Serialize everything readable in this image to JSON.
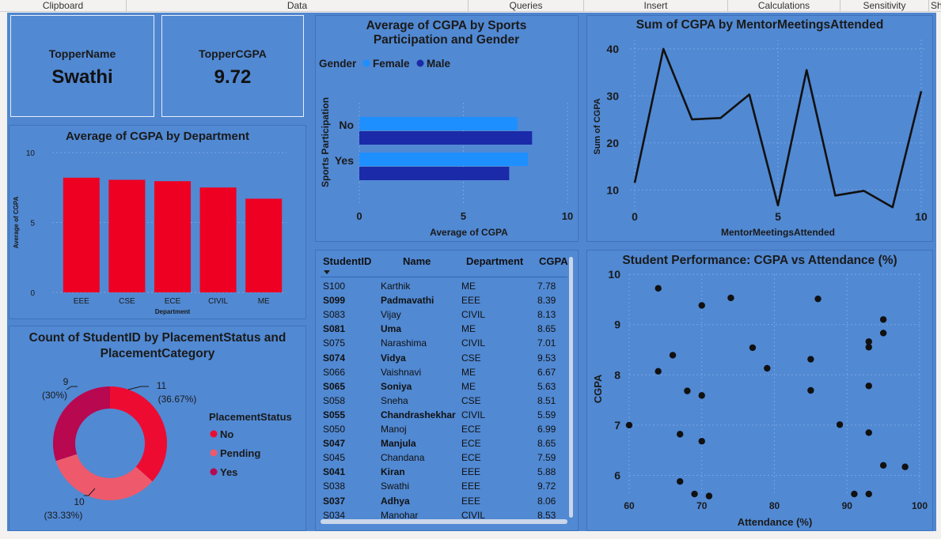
{
  "ribbon": {
    "groups": [
      "Clipboard",
      "Data",
      "Queries",
      "Insert",
      "Calculations",
      "Sensitivity",
      "Sh"
    ]
  },
  "cards": {
    "topper_name": {
      "label": "TopperName",
      "value": "Swathi"
    },
    "topper_cgpa": {
      "label": "TopperCGPA",
      "value": "9.72"
    }
  },
  "colors": {
    "canvas": "#4f86cf",
    "bar_red": "#ee0022",
    "female": "#1e8fff",
    "male": "#1b2aa8",
    "donut_no": "#ee0b32",
    "donut_pending": "#ee5a6c",
    "donut_yes": "#b8084f"
  },
  "chart_data": [
    {
      "id": "dept",
      "type": "bar",
      "title": "Average of CGPA by Department",
      "xlabel": "Department",
      "ylabel": "Average of CGPA",
      "categories": [
        "EEE",
        "CSE",
        "ECE",
        "CIVIL",
        "ME"
      ],
      "values": [
        8.2,
        8.05,
        7.95,
        7.5,
        6.7
      ],
      "ylim": [
        0,
        10
      ],
      "yticks": [
        "0",
        "5",
        "10"
      ]
    },
    {
      "id": "sports",
      "type": "bar",
      "title": "Average of CGPA by Sports Participation and Gender",
      "legend_title": "Gender",
      "xlabel": "Average of CGPA",
      "ylabel": "Sports Participation",
      "categories": [
        "No",
        "Yes"
      ],
      "series": [
        {
          "name": "Female",
          "values": [
            7.6,
            8.1
          ]
        },
        {
          "name": "Male",
          "values": [
            8.3,
            7.2
          ]
        }
      ],
      "xlim": [
        0,
        10
      ],
      "xticks": [
        "0",
        "5",
        "10"
      ]
    },
    {
      "id": "mentor",
      "type": "line",
      "title": "Sum of CGPA by MentorMeetingsAttended",
      "xlabel": "MentorMeetingsAttended",
      "ylabel": "Sum of CGPA",
      "x": [
        0,
        1,
        2,
        3,
        4,
        5,
        6,
        7,
        8,
        9,
        10
      ],
      "y": [
        11.5,
        40,
        25,
        25.3,
        30.3,
        6.7,
        35.5,
        8.8,
        9.8,
        6.3,
        31
      ],
      "xlim": [
        0,
        10
      ],
      "ylim": [
        5,
        42
      ],
      "xticks": [
        "0",
        "5",
        "10"
      ],
      "yticks": [
        "10",
        "20",
        "30",
        "40"
      ]
    },
    {
      "id": "placement",
      "type": "pie",
      "title": "Count of StudentID by PlacementStatus and PlacementCategory",
      "legend_title": "PlacementStatus",
      "categories": [
        "No",
        "Pending",
        "Yes"
      ],
      "values": [
        11,
        10,
        9
      ],
      "labels": [
        "11",
        "10",
        "9"
      ],
      "percent_labels": [
        "(36.67%)",
        "(33.33%)",
        "(30%)"
      ]
    },
    {
      "id": "scatter",
      "type": "scatter",
      "title": "Student Performance: CGPA vs Attendance (%)",
      "xlabel": "Attendance (%)",
      "ylabel": "CGPA",
      "xlim": [
        60,
        100
      ],
      "ylim": [
        5.6,
        10
      ],
      "xticks": [
        "60",
        "70",
        "80",
        "90",
        "100"
      ],
      "yticks": [
        "6",
        "7",
        "8",
        "9",
        "10"
      ],
      "x": [
        64,
        70,
        74,
        86,
        95,
        93,
        95,
        93,
        77,
        66,
        85,
        64,
        79,
        93,
        68,
        70,
        85,
        60,
        89,
        67,
        70,
        93,
        95,
        98,
        67,
        69,
        71,
        91,
        93
      ],
      "y": [
        9.72,
        9.38,
        9.53,
        9.51,
        9.1,
        8.66,
        8.83,
        8.55,
        8.54,
        8.39,
        8.31,
        8.07,
        8.13,
        7.78,
        7.68,
        7.59,
        7.69,
        7.0,
        7.01,
        6.82,
        6.68,
        6.85,
        6.2,
        6.17,
        5.88,
        5.63,
        5.59,
        5.63,
        5.63
      ]
    }
  ],
  "table": {
    "columns": [
      "StudentID",
      "Name",
      "Department",
      "CGPA"
    ],
    "rows": [
      [
        "S100",
        "Karthik",
        "ME",
        "7.78"
      ],
      [
        "S099",
        "Padmavathi",
        "EEE",
        "8.39"
      ],
      [
        "S083",
        "Vijay",
        "CIVIL",
        "8.13"
      ],
      [
        "S081",
        "Uma",
        "ME",
        "8.65"
      ],
      [
        "S075",
        "Narashima",
        "CIVIL",
        "7.01"
      ],
      [
        "S074",
        "Vidya",
        "CSE",
        "9.53"
      ],
      [
        "S066",
        "Vaishnavi",
        "ME",
        "6.67"
      ],
      [
        "S065",
        "Soniya",
        "ME",
        "5.63"
      ],
      [
        "S058",
        "Sneha",
        "CSE",
        "8.51"
      ],
      [
        "S055",
        "Chandrashekhar",
        "CIVIL",
        "5.59"
      ],
      [
        "S050",
        "Manoj",
        "ECE",
        "6.99"
      ],
      [
        "S047",
        "Manjula",
        "ECE",
        "8.65"
      ],
      [
        "S045",
        "Chandana",
        "ECE",
        "7.59"
      ],
      [
        "S041",
        "Kiran",
        "EEE",
        "5.88"
      ],
      [
        "S038",
        "Swathi",
        "EEE",
        "9.72"
      ],
      [
        "S037",
        "Adhya",
        "EEE",
        "8.06"
      ],
      [
        "S034",
        "Manohar",
        "CIVIL",
        "8.53"
      ]
    ]
  }
}
